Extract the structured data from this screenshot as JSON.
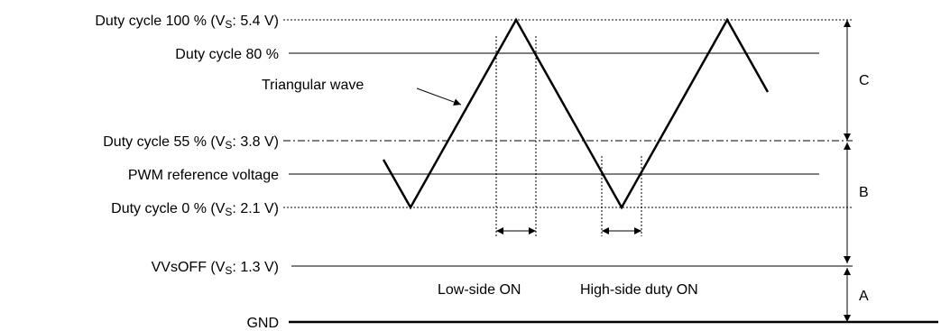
{
  "levels": {
    "duty100": {
      "prefix": "Duty cycle 100 % (V",
      "sub": "S",
      "suffix": ": 5.4 V)"
    },
    "duty80": {
      "text": "Duty cycle 80 %"
    },
    "duty55": {
      "prefix": "Duty cycle 55 % (V",
      "sub": "S",
      "suffix": ": 3.8 V)"
    },
    "pwm_ref": {
      "text": "PWM reference voltage"
    },
    "duty0": {
      "prefix": "Duty cycle 0 % (V",
      "sub": "S",
      "suffix": ": 2.1 V)"
    },
    "vvsoff": {
      "prefix": "VVsOFF (V",
      "sub": "S",
      "suffix": ": 1.3 V)"
    },
    "gnd": {
      "text": "GND"
    }
  },
  "annotations": {
    "triangular_wave": "Triangular wave",
    "low_side_on": "Low-side ON",
    "high_side_duty_on": "High-side duty ON"
  },
  "regions": {
    "a": "A",
    "b": "B",
    "c": "C"
  },
  "colors": {
    "line": "#000000",
    "background": "#ffffff"
  }
}
